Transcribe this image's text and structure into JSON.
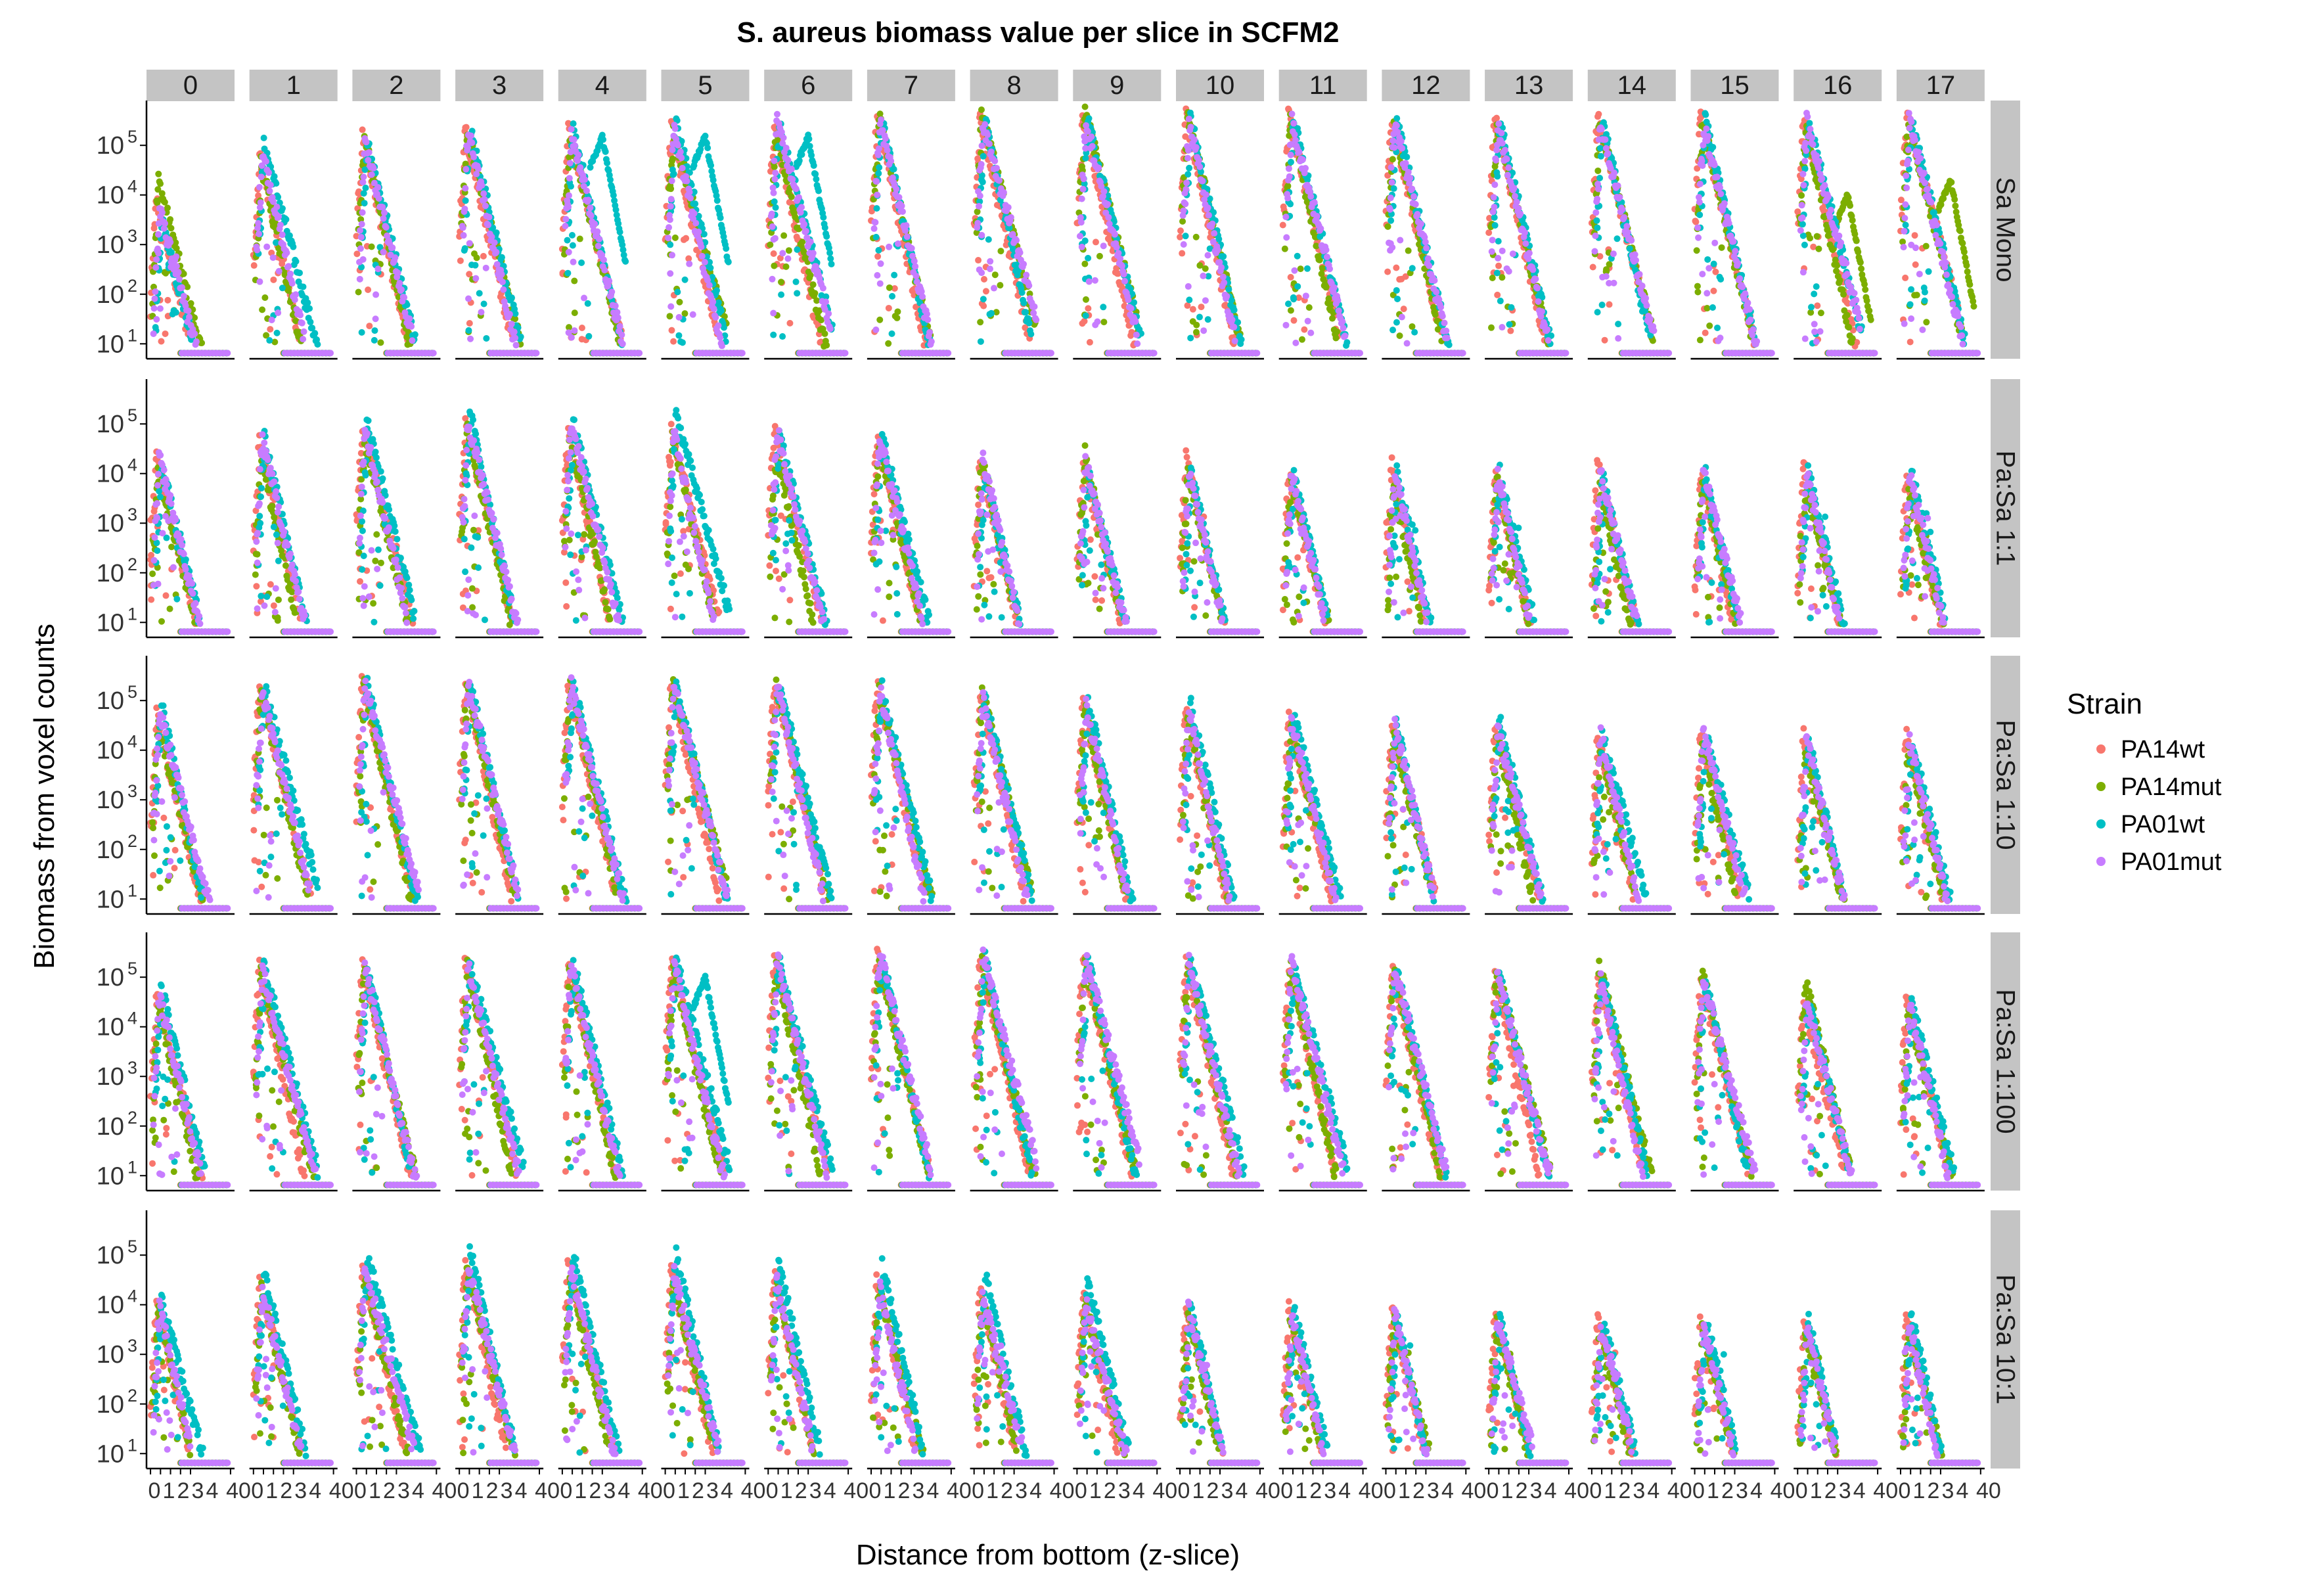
{
  "chart_data": {
    "type": "scatter",
    "title": "S. aureus biomass value per slice in SCFM2",
    "xlabel": "Distance from bottom (z-slice)",
    "ylabel": "Biomass from voxel counts",
    "y_scale": "log10",
    "ylim": [
      5,
      800000
    ],
    "xlim": [
      -4,
      84
    ],
    "x_ticks": [
      "0",
      "1",
      "2",
      "3",
      "4",
      "40",
      "0",
      "1",
      "2",
      "3",
      "4",
      "40"
    ],
    "y_tick_labels": [
      {
        "base": "10",
        "exp": "1",
        "value": 10
      },
      {
        "base": "10",
        "exp": "2",
        "value": 100
      },
      {
        "base": "10",
        "exp": "3",
        "value": 1000
      },
      {
        "base": "10",
        "exp": "4",
        "value": 10000
      },
      {
        "base": "10",
        "exp": "5",
        "value": 100000
      }
    ],
    "column_facets": [
      "0",
      "1",
      "2",
      "3",
      "4",
      "5",
      "6",
      "7",
      "8",
      "9",
      "10",
      "11",
      "12",
      "13",
      "14",
      "15",
      "16",
      "17"
    ],
    "row_facets": [
      "Sa Mono",
      "Pa:Sa 1:1",
      "Pa:Sa 1:10",
      "Pa:Sa 1:100",
      "Pa:Sa 10:1"
    ],
    "legend": {
      "title": "Strain",
      "position": "right"
    },
    "series": [
      {
        "name": "PA14wt",
        "color": "#F8766D"
      },
      {
        "name": "PA14mut",
        "color": "#7CAE00"
      },
      {
        "name": "PA01wt",
        "color": "#00BFC4"
      },
      {
        "name": "PA01mut",
        "color": "#C77CFF"
      }
    ],
    "peak_profile": {
      "Sa Mono": [
        [
          8000,
          20000,
          3000,
          5000
        ],
        [
          60000,
          40000,
          100000,
          80000
        ],
        [
          150000,
          150000,
          130000,
          120000
        ],
        [
          200000,
          180000,
          200000,
          190000
        ],
        [
          200000,
          180000,
          200000,
          180000
        ],
        [
          250000,
          200000,
          300000,
          200000
        ],
        [
          250000,
          200000,
          250000,
          300000
        ],
        [
          350000,
          400000,
          300000,
          300000
        ],
        [
          300000,
          400000,
          300000,
          300000
        ],
        [
          350000,
          500000,
          300000,
          300000
        ],
        [
          400000,
          400000,
          300000,
          300000
        ],
        [
          400000,
          300000,
          300000,
          300000
        ],
        [
          350000,
          300000,
          300000,
          300000
        ],
        [
          350000,
          300000,
          300000,
          250000
        ],
        [
          350000,
          300000,
          300000,
          250000
        ],
        [
          350000,
          300000,
          300000,
          250000
        ],
        [
          350000,
          250000,
          300000,
          300000
        ],
        [
          400000,
          300000,
          300000,
          300000
        ]
      ],
      "Pa:Sa 1:1": [
        [
          20000,
          10000,
          15000,
          20000
        ],
        [
          40000,
          20000,
          50000,
          50000
        ],
        [
          100000,
          50000,
          100000,
          80000
        ],
        [
          100000,
          80000,
          150000,
          100000
        ],
        [
          80000,
          60000,
          100000,
          100000
        ],
        [
          70000,
          50000,
          150000,
          60000
        ],
        [
          80000,
          30000,
          60000,
          70000
        ],
        [
          50000,
          40000,
          50000,
          50000
        ],
        [
          20000,
          20000,
          10000,
          20000
        ],
        [
          15000,
          25000,
          10000,
          15000
        ],
        [
          20000,
          10000,
          10000,
          10000
        ],
        [
          10000,
          8000,
          8000,
          10000
        ],
        [
          15000,
          5000,
          10000,
          10000
        ],
        [
          10000,
          8000,
          10000,
          10000
        ],
        [
          15000,
          5000,
          8000,
          10000
        ],
        [
          10000,
          8000,
          10000,
          10000
        ],
        [
          15000,
          5000,
          10000,
          10000
        ],
        [
          10000,
          5000,
          10000,
          10000
        ]
      ],
      "Pa:Sa 1:10": [
        [
          50000,
          30000,
          80000,
          60000
        ],
        [
          200000,
          150000,
          180000,
          150000
        ],
        [
          220000,
          200000,
          200000,
          200000
        ],
        [
          220000,
          200000,
          200000,
          200000
        ],
        [
          220000,
          250000,
          200000,
          200000
        ],
        [
          200000,
          200000,
          200000,
          200000
        ],
        [
          200000,
          200000,
          200000,
          200000
        ],
        [
          200000,
          150000,
          180000,
          150000
        ],
        [
          150000,
          150000,
          100000,
          100000
        ],
        [
          80000,
          70000,
          100000,
          80000
        ],
        [
          60000,
          50000,
          80000,
          60000
        ],
        [
          40000,
          30000,
          50000,
          40000
        ],
        [
          30000,
          20000,
          30000,
          30000
        ],
        [
          30000,
          20000,
          40000,
          25000
        ],
        [
          20000,
          10000,
          20000,
          20000
        ],
        [
          20000,
          10000,
          20000,
          20000
        ],
        [
          20000,
          10000,
          15000,
          15000
        ],
        [
          20000,
          10000,
          15000,
          15000
        ]
      ],
      "Pa:Sa 1:100": [
        [
          40000,
          30000,
          60000,
          40000
        ],
        [
          150000,
          120000,
          150000,
          130000
        ],
        [
          180000,
          150000,
          170000,
          150000
        ],
        [
          200000,
          170000,
          180000,
          160000
        ],
        [
          200000,
          160000,
          190000,
          170000
        ],
        [
          200000,
          150000,
          200000,
          180000
        ],
        [
          250000,
          150000,
          200000,
          250000
        ],
        [
          300000,
          180000,
          250000,
          300000
        ],
        [
          250000,
          200000,
          250000,
          250000
        ],
        [
          250000,
          200000,
          250000,
          250000
        ],
        [
          200000,
          200000,
          200000,
          200000
        ],
        [
          150000,
          150000,
          150000,
          180000
        ],
        [
          150000,
          150000,
          120000,
          150000
        ],
        [
          100000,
          150000,
          100000,
          100000
        ],
        [
          100000,
          150000,
          100000,
          80000
        ],
        [
          80000,
          130000,
          80000,
          80000
        ],
        [
          30000,
          80000,
          30000,
          30000
        ],
        [
          40000,
          20000,
          30000,
          30000
        ]
      ],
      "Pa:Sa 10:1": [
        [
          10000,
          8000,
          12000,
          10000
        ],
        [
          30000,
          20000,
          40000,
          20000
        ],
        [
          60000,
          40000,
          100000,
          50000
        ],
        [
          70000,
          50000,
          120000,
          60000
        ],
        [
          60000,
          40000,
          100000,
          50000
        ],
        [
          50000,
          30000,
          100000,
          40000
        ],
        [
          40000,
          30000,
          60000,
          30000
        ],
        [
          30000,
          20000,
          60000,
          20000
        ],
        [
          20000,
          15000,
          40000,
          15000
        ],
        [
          15000,
          10000,
          30000,
          10000
        ],
        [
          10000,
          8000,
          8000,
          8000
        ],
        [
          8000,
          6000,
          8000,
          7000
        ],
        [
          7000,
          5000,
          6000,
          6000
        ],
        [
          6000,
          4000,
          5000,
          5000
        ],
        [
          5000,
          3000,
          5000,
          4000
        ],
        [
          5000,
          3000,
          5000,
          4000
        ],
        [
          5000,
          3000,
          5000,
          4000
        ],
        [
          5000,
          3000,
          6000,
          4000
        ]
      ]
    },
    "secondary_peaks": [
      {
        "row": "Sa Mono",
        "col": "4",
        "series": "PA01wt",
        "x": 40,
        "value": 150000
      },
      {
        "row": "Sa Mono",
        "col": "5",
        "series": "PA01wt",
        "x": 40,
        "value": 150000
      },
      {
        "row": "Sa Mono",
        "col": "6",
        "series": "PA01wt",
        "x": 40,
        "value": 150000
      },
      {
        "row": "Sa Mono",
        "col": "16",
        "series": "PA14mut",
        "x": 50,
        "value": 10000
      },
      {
        "row": "Sa Mono",
        "col": "17",
        "series": "PA14mut",
        "x": 50,
        "value": 20000
      },
      {
        "row": "Pa:Sa 1:100",
        "col": "5",
        "series": "PA01wt",
        "x": 40,
        "value": 100000
      }
    ]
  }
}
